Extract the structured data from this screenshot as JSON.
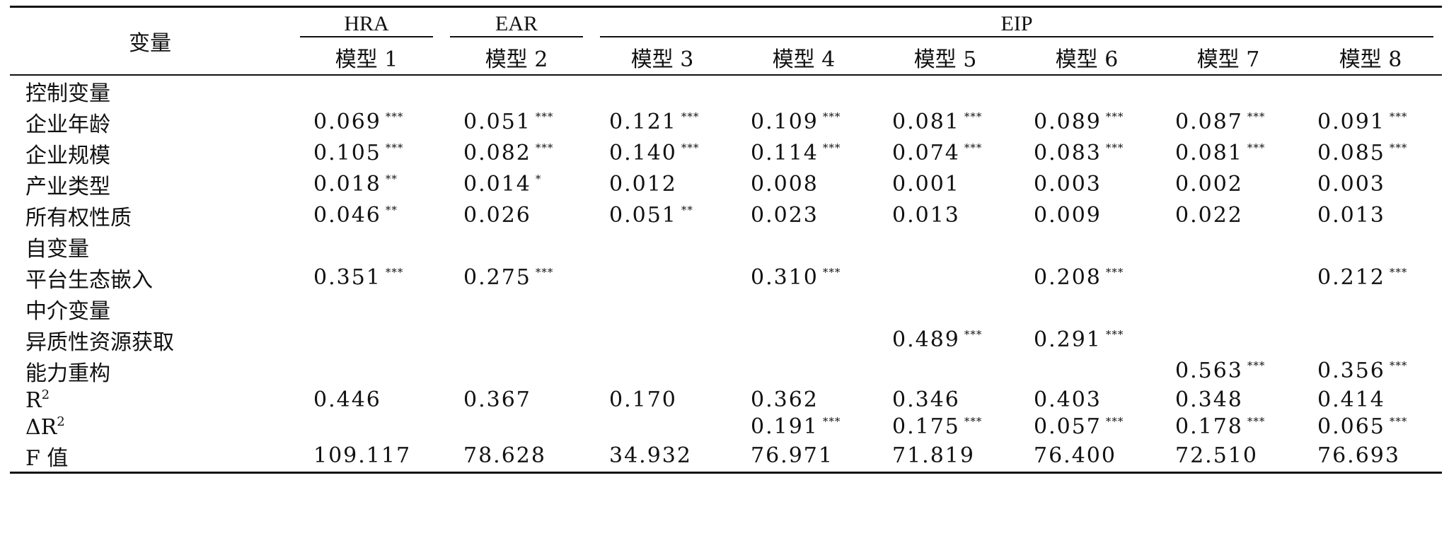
{
  "header": {
    "variable_col": "变量",
    "groups": [
      {
        "label": "HRA",
        "span": 1
      },
      {
        "label": "EAR",
        "span": 1
      },
      {
        "label": "EIP",
        "span": 6
      }
    ],
    "models": [
      "模型 1",
      "模型 2",
      "模型 3",
      "模型 4",
      "模型 5",
      "模型 6",
      "模型 7",
      "模型 8"
    ]
  },
  "rows": [
    {
      "label": "控制变量",
      "section": true,
      "cells": []
    },
    {
      "label": "企业年龄",
      "cells": [
        {
          "v": "0.069",
          "s": "***"
        },
        {
          "v": "0.051",
          "s": "***"
        },
        {
          "v": "0.121",
          "s": "***"
        },
        {
          "v": "0.109",
          "s": "***"
        },
        {
          "v": "0.081",
          "s": "***"
        },
        {
          "v": "0.089",
          "s": "***"
        },
        {
          "v": "0.087",
          "s": "***"
        },
        {
          "v": "0.091",
          "s": "***"
        }
      ]
    },
    {
      "label": "企业规模",
      "cells": [
        {
          "v": "0.105",
          "s": "***"
        },
        {
          "v": "0.082",
          "s": "***"
        },
        {
          "v": "0.140",
          "s": "***"
        },
        {
          "v": "0.114",
          "s": "***"
        },
        {
          "v": "0.074",
          "s": "***"
        },
        {
          "v": "0.083",
          "s": "***"
        },
        {
          "v": "0.081",
          "s": "***"
        },
        {
          "v": "0.085",
          "s": "***"
        }
      ]
    },
    {
      "label": "产业类型",
      "cells": [
        {
          "v": "0.018",
          "s": "**"
        },
        {
          "v": "0.014",
          "s": "*"
        },
        {
          "v": "0.012",
          "s": ""
        },
        {
          "v": "0.008",
          "s": ""
        },
        {
          "v": "0.001",
          "s": ""
        },
        {
          "v": "0.003",
          "s": ""
        },
        {
          "v": "0.002",
          "s": ""
        },
        {
          "v": "0.003",
          "s": ""
        }
      ]
    },
    {
      "label": "所有权性质",
      "cells": [
        {
          "v": "0.046",
          "s": "**"
        },
        {
          "v": "0.026",
          "s": ""
        },
        {
          "v": "0.051",
          "s": "**"
        },
        {
          "v": "0.023",
          "s": ""
        },
        {
          "v": "0.013",
          "s": ""
        },
        {
          "v": "0.009",
          "s": ""
        },
        {
          "v": "0.022",
          "s": ""
        },
        {
          "v": "0.013",
          "s": ""
        }
      ]
    },
    {
      "label": "自变量",
      "section": true,
      "cells": []
    },
    {
      "label": "平台生态嵌入",
      "cells": [
        {
          "v": "0.351",
          "s": "***"
        },
        {
          "v": "0.275",
          "s": "***"
        },
        {
          "v": "",
          "s": ""
        },
        {
          "v": "0.310",
          "s": "***"
        },
        {
          "v": "",
          "s": ""
        },
        {
          "v": "0.208",
          "s": "***"
        },
        {
          "v": "",
          "s": ""
        },
        {
          "v": "0.212",
          "s": "***"
        }
      ]
    },
    {
      "label": "中介变量",
      "section": true,
      "cells": []
    },
    {
      "label": "异质性资源获取",
      "cells": [
        {
          "v": "",
          "s": ""
        },
        {
          "v": "",
          "s": ""
        },
        {
          "v": "",
          "s": ""
        },
        {
          "v": "",
          "s": ""
        },
        {
          "v": "0.489",
          "s": "***"
        },
        {
          "v": "0.291",
          "s": "***"
        },
        {
          "v": "",
          "s": ""
        },
        {
          "v": "",
          "s": ""
        }
      ]
    },
    {
      "label": "能力重构",
      "cells": [
        {
          "v": "",
          "s": ""
        },
        {
          "v": "",
          "s": ""
        },
        {
          "v": "",
          "s": ""
        },
        {
          "v": "",
          "s": ""
        },
        {
          "v": "",
          "s": ""
        },
        {
          "v": "",
          "s": ""
        },
        {
          "v": "0.563",
          "s": "***"
        },
        {
          "v": "0.356",
          "s": "***"
        }
      ]
    },
    {
      "label": "R",
      "sup": "2",
      "cells": [
        {
          "v": "0.446",
          "s": ""
        },
        {
          "v": "0.367",
          "s": ""
        },
        {
          "v": "0.170",
          "s": ""
        },
        {
          "v": "0.362",
          "s": ""
        },
        {
          "v": "0.346",
          "s": ""
        },
        {
          "v": "0.403",
          "s": ""
        },
        {
          "v": "0.348",
          "s": ""
        },
        {
          "v": "0.414",
          "s": ""
        }
      ]
    },
    {
      "label": "ΔR",
      "sup": "2",
      "cells": [
        {
          "v": "",
          "s": ""
        },
        {
          "v": "",
          "s": ""
        },
        {
          "v": "",
          "s": ""
        },
        {
          "v": "0.191",
          "s": "***"
        },
        {
          "v": "0.175",
          "s": "***"
        },
        {
          "v": "0.057",
          "s": "***"
        },
        {
          "v": "0.178",
          "s": "***"
        },
        {
          "v": "0.065",
          "s": "***"
        }
      ]
    },
    {
      "label": "F 值",
      "last": true,
      "cells": [
        {
          "v": "109.117",
          "s": ""
        },
        {
          "v": "78.628",
          "s": ""
        },
        {
          "v": "34.932",
          "s": ""
        },
        {
          "v": "76.971",
          "s": ""
        },
        {
          "v": "71.819",
          "s": ""
        },
        {
          "v": "76.400",
          "s": ""
        },
        {
          "v": "72.510",
          "s": ""
        },
        {
          "v": "76.693",
          "s": ""
        }
      ]
    }
  ]
}
